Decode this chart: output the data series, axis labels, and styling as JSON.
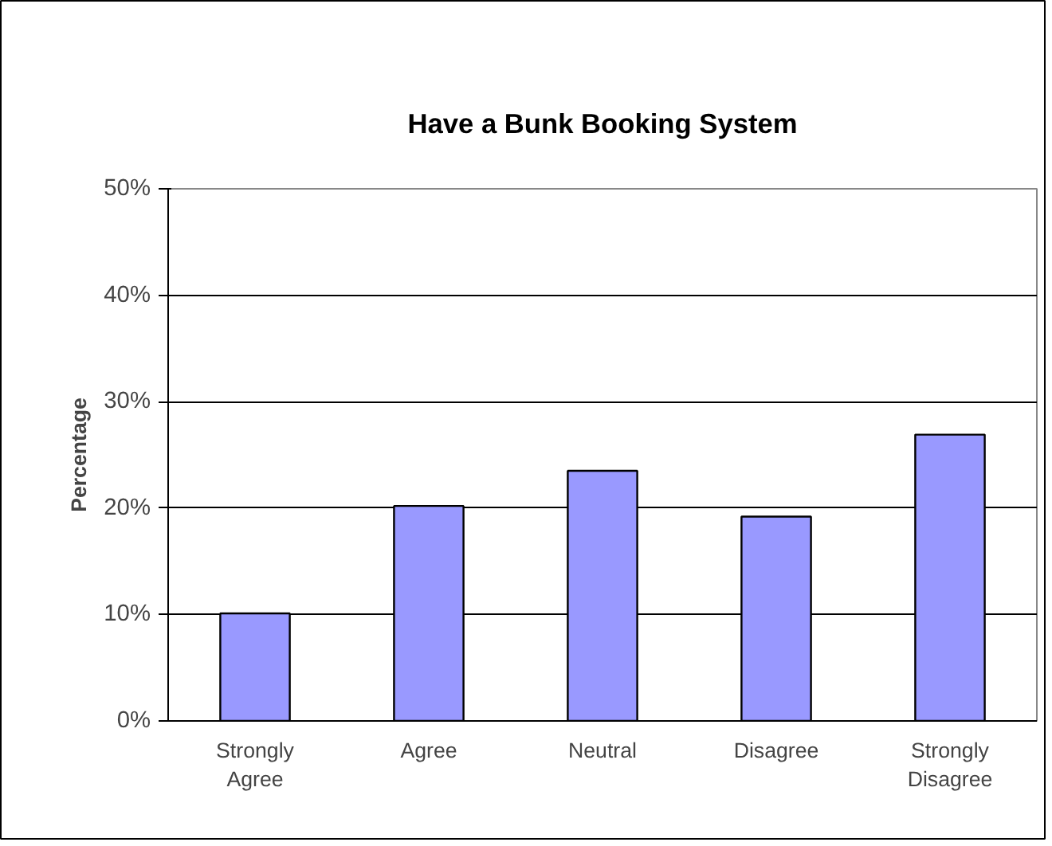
{
  "chart_data": {
    "type": "bar",
    "title": "Have a Bunk Booking System",
    "ylabel": "Percentage",
    "categories": [
      "Strongly Agree",
      "Agree",
      "Neutral",
      "Disagree",
      "Strongly Disagree"
    ],
    "values": [
      10.1,
      20.2,
      23.5,
      19.2,
      26.9
    ],
    "color": "#9999ff",
    "ylim": [
      0,
      50
    ],
    "yticks": [
      {
        "value": 0,
        "label": "0%"
      },
      {
        "value": 10,
        "label": "10%"
      },
      {
        "value": 20,
        "label": "20%"
      },
      {
        "value": 30,
        "label": "30%"
      },
      {
        "value": 40,
        "label": "40%"
      },
      {
        "value": 50,
        "label": "50%"
      }
    ],
    "grid": "y"
  }
}
